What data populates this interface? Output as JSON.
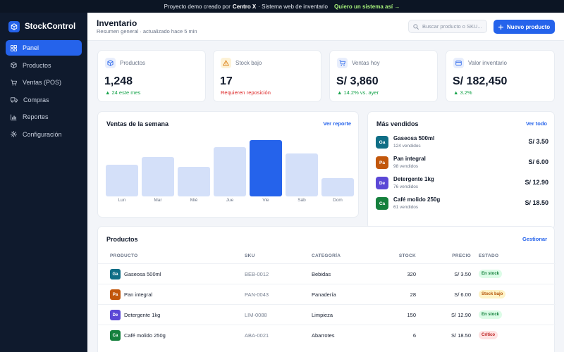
{
  "promo": {
    "prefix": "Proyecto demo creado por",
    "brand": "Centro X",
    "suffix": "· Sistema web de inventario",
    "cta": "Quiero un sistema así →"
  },
  "sidebar": {
    "app_name": "StockControl",
    "items": [
      {
        "label": "Panel",
        "icon": "grid-icon",
        "active": true
      },
      {
        "label": "Productos",
        "icon": "box-icon",
        "active": false
      },
      {
        "label": "Ventas (POS)",
        "icon": "cart-icon",
        "active": false
      },
      {
        "label": "Compras",
        "icon": "truck-icon",
        "active": false
      },
      {
        "label": "Reportes",
        "icon": "bar-chart-icon",
        "active": false
      },
      {
        "label": "Configuración",
        "icon": "gear-icon",
        "active": false
      }
    ]
  },
  "header": {
    "title": "Inventario",
    "subtitle": "Resumen general · actualizado hace 5 min",
    "search_placeholder": "Buscar producto o SKU...",
    "new_button": "Nuevo producto"
  },
  "stats": [
    {
      "label": "Productos",
      "value": "1,248",
      "delta": "▲ 24 este mes",
      "tone": "green",
      "icon": "box-icon",
      "icon_bg": "#e8eefc",
      "icon_color": "#2563eb"
    },
    {
      "label": "Stock bajo",
      "value": "17",
      "delta": "Requieren reposición",
      "tone": "red",
      "icon": "warning-icon",
      "icon_bg": "#fdf2d6",
      "icon_color": "#d97706"
    },
    {
      "label": "Ventas hoy",
      "value": "S/ 3,860",
      "delta": "▲ 14.2% vs. ayer",
      "tone": "green",
      "icon": "cart-icon",
      "icon_bg": "#e8eefc",
      "icon_color": "#2563eb"
    },
    {
      "label": "Valor inventario",
      "value": "S/ 182,450",
      "delta": "▲ 3.2%",
      "tone": "green",
      "icon": "wallet-icon",
      "icon_bg": "#e8eefc",
      "icon_color": "#2563eb"
    }
  ],
  "weekly_sales": {
    "title": "Ventas de la semana",
    "link": "Ver reporte",
    "highlight_color": "#2563eb",
    "bar_color": "#d4e0f9"
  },
  "chart_data": {
    "type": "bar",
    "categories": [
      "Lun",
      "Mar",
      "Mié",
      "Jue",
      "Vie",
      "Sáb",
      "Dom"
    ],
    "values": [
      56,
      70,
      52,
      87,
      100,
      76,
      33
    ],
    "ylim": [
      0,
      100
    ]
  },
  "top_sellers": {
    "title": "Más vendidos",
    "link": "Ver todo",
    "items": [
      {
        "initials": "Ga",
        "color": "#0f6e86",
        "name": "Gaseosa 500ml",
        "sold": "124 vendidos",
        "price": "S/ 3.50"
      },
      {
        "initials": "Pa",
        "color": "#c2570c",
        "name": "Pan integral",
        "sold": "98 vendidos",
        "price": "S/ 6.00"
      },
      {
        "initials": "De",
        "color": "#5b48d6",
        "name": "Detergente 1kg",
        "sold": "76 vendidos",
        "price": "S/ 12.90"
      },
      {
        "initials": "Ca",
        "color": "#15803d",
        "name": "Café molido 250g",
        "sold": "61 vendidos",
        "price": "S/ 18.50"
      }
    ]
  },
  "products": {
    "title": "Productos",
    "link": "Gestionar",
    "columns": [
      "PRODUCTO",
      "SKU",
      "CATEGORÍA",
      "STOCK",
      "PRECIO",
      "ESTADO"
    ],
    "rows": [
      {
        "initials": "Ga",
        "color": "#0f6e86",
        "name": "Gaseosa 500ml",
        "sku": "BEB-0012",
        "category": "Bebidas",
        "stock": "320",
        "price": "S/ 3.50",
        "status": "En stock",
        "status_bg": "#dcfce7",
        "status_fg": "#15803d"
      },
      {
        "initials": "Pa",
        "color": "#c2570c",
        "name": "Pan integral",
        "sku": "PAN-0043",
        "category": "Panadería",
        "stock": "28",
        "price": "S/ 6.00",
        "status": "Stock bajo",
        "status_bg": "#fef3c7",
        "status_fg": "#b45309"
      },
      {
        "initials": "De",
        "color": "#5b48d6",
        "name": "Detergente 1kg",
        "sku": "LIM-0088",
        "category": "Limpieza",
        "stock": "150",
        "price": "S/ 12.90",
        "status": "En stock",
        "status_bg": "#dcfce7",
        "status_fg": "#15803d"
      },
      {
        "initials": "Ca",
        "color": "#15803d",
        "name": "Café molido 250g",
        "sku": "ABA-0021",
        "category": "Abarrotes",
        "stock": "6",
        "price": "S/ 18.50",
        "status": "Crítico",
        "status_bg": "#fee2e2",
        "status_fg": "#b91c1c"
      }
    ]
  }
}
